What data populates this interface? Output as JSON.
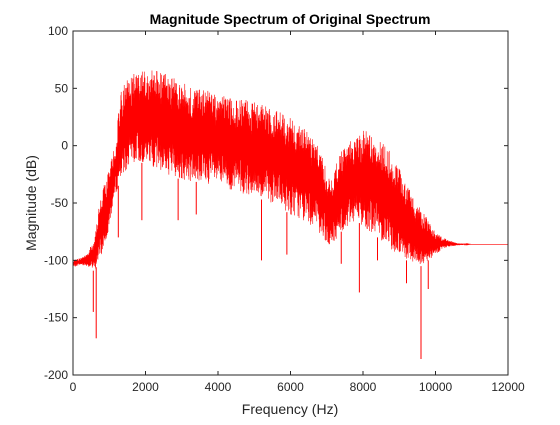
{
  "chart_data": {
    "type": "line",
    "title": "Magnitude Spectrum of Original Spectrum",
    "xlabel": "Frequency (Hz)",
    "ylabel": "Magnitude (dB)",
    "xlim": [
      0,
      12000
    ],
    "ylim": [
      -200,
      100
    ],
    "xticks": [
      0,
      2000,
      4000,
      6000,
      8000,
      10000,
      12000
    ],
    "xtick_labels": [
      "0",
      "2000",
      "4000",
      "6000",
      "8000",
      "10000",
      "12000"
    ],
    "yticks": [
      -200,
      -150,
      -100,
      -50,
      0,
      50,
      100
    ],
    "ytick_labels": [
      "-200",
      "-150",
      "-100",
      "-50",
      "0",
      "50",
      "100"
    ],
    "grid": false,
    "legend": "none",
    "color": "#ff0000",
    "series": [
      {
        "upper_envelope": {
          "x": [
            0,
            200,
            400,
            600,
            700,
            800,
            900,
            1000,
            1100,
            1200,
            1300,
            1500,
            1700,
            2000,
            2300,
            2600,
            3000,
            3500,
            4000,
            4500,
            5000,
            5500,
            6000,
            6300,
            6600,
            6800,
            6900,
            7000,
            7100,
            7200,
            7400,
            7600,
            7800,
            8000,
            8200,
            8400,
            8600,
            8800,
            9000,
            9200,
            9400,
            9600,
            9800,
            10000,
            10200,
            10400,
            10600,
            11000,
            11500,
            12000
          ],
          "y": [
            -100,
            -98,
            -94,
            -80,
            -55,
            -40,
            -30,
            -20,
            -5,
            10,
            45,
            60,
            64,
            65,
            66,
            62,
            55,
            50,
            45,
            42,
            38,
            32,
            25,
            18,
            8,
            -2,
            -10,
            -25,
            -30,
            -20,
            -5,
            5,
            12,
            14,
            12,
            8,
            2,
            -8,
            -20,
            -32,
            -45,
            -55,
            -65,
            -75,
            -80,
            -83,
            -85,
            -86,
            -86,
            -86
          ]
        },
        "lower_envelope": {
          "x": [
            0,
            200,
            400,
            600,
            700,
            800,
            900,
            1000,
            1100,
            1200,
            1300,
            1500,
            1700,
            2000,
            2300,
            2600,
            3000,
            3500,
            4000,
            4500,
            5000,
            5500,
            6000,
            6300,
            6600,
            6800,
            6900,
            7000,
            7100,
            7200,
            7400,
            7600,
            7800,
            8000,
            8200,
            8400,
            8600,
            8800,
            9000,
            9200,
            9400,
            9600,
            9800,
            10000,
            10200,
            10400,
            10600,
            11000,
            11500,
            12000
          ],
          "y": [
            -106,
            -104,
            -105,
            -110,
            -100,
            -95,
            -85,
            -70,
            -55,
            -40,
            -30,
            -20,
            -15,
            -15,
            -20,
            -25,
            -30,
            -32,
            -35,
            -40,
            -45,
            -50,
            -60,
            -65,
            -70,
            -78,
            -80,
            -85,
            -90,
            -85,
            -75,
            -70,
            -65,
            -70,
            -75,
            -80,
            -85,
            -92,
            -96,
            -100,
            -102,
            -105,
            -100,
            -96,
            -90,
            -88,
            -87,
            -86,
            -86,
            -86
          ]
        },
        "spikes": [
          {
            "x": 560,
            "y": -145
          },
          {
            "x": 640,
            "y": -168
          },
          {
            "x": 1250,
            "y": -80
          },
          {
            "x": 1900,
            "y": -65
          },
          {
            "x": 2900,
            "y": -65
          },
          {
            "x": 3400,
            "y": -60
          },
          {
            "x": 5200,
            "y": -100
          },
          {
            "x": 5900,
            "y": -95
          },
          {
            "x": 7400,
            "y": -103
          },
          {
            "x": 7900,
            "y": -128
          },
          {
            "x": 8400,
            "y": -100
          },
          {
            "x": 9200,
            "y": -120
          },
          {
            "x": 9600,
            "y": -186
          },
          {
            "x": 9800,
            "y": -125
          }
        ]
      }
    ]
  }
}
